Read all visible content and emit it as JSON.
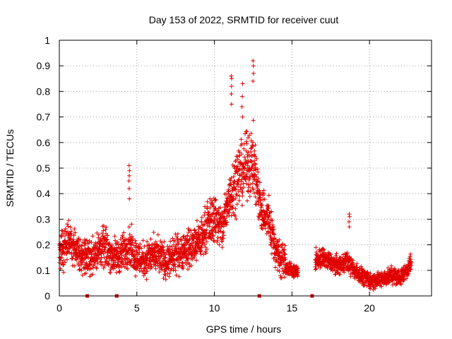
{
  "chart_data": {
    "type": "scatter",
    "title": "Day 153 of 2022, SRMTID for receiver cuut",
    "xlabel": "GPS time / hours",
    "ylabel": "SRMTID / TECUs",
    "xlim": [
      0,
      24
    ],
    "ylim": [
      0,
      1
    ],
    "xticks": [
      0,
      5,
      10,
      15,
      20
    ],
    "xtick_labels": [
      "0",
      "5",
      "10",
      "15",
      "20"
    ],
    "yticks": [
      0,
      0.1,
      0.2,
      0.3,
      0.4,
      0.5,
      0.6,
      0.7,
      0.8,
      0.9,
      1
    ],
    "ytick_labels": [
      "0",
      "0.1",
      "0.2",
      "0.3",
      "0.4",
      "0.5",
      "0.6",
      "0.7",
      "0.8",
      "0.9",
      "1"
    ],
    "grid": true,
    "marker": "plus",
    "color": "#e00000",
    "series": [
      {
        "name": "SRMTID",
        "segments": [
          {
            "t_start": 0.0,
            "t_end": 14.6,
            "profile": [
              [
                0.0,
                0.17
              ],
              [
                0.5,
                0.21
              ],
              [
                1.0,
                0.19
              ],
              [
                1.5,
                0.16
              ],
              [
                2.0,
                0.15
              ],
              [
                2.5,
                0.18
              ],
              [
                3.0,
                0.19
              ],
              [
                3.5,
                0.15
              ],
              [
                4.0,
                0.16
              ],
              [
                4.5,
                0.2
              ],
              [
                5.0,
                0.15
              ],
              [
                5.5,
                0.14
              ],
              [
                6.0,
                0.16
              ],
              [
                6.5,
                0.15
              ],
              [
                7.0,
                0.13
              ],
              [
                7.5,
                0.16
              ],
              [
                8.0,
                0.18
              ],
              [
                8.5,
                0.19
              ],
              [
                9.0,
                0.21
              ],
              [
                9.5,
                0.27
              ],
              [
                10.0,
                0.31
              ],
              [
                10.5,
                0.26
              ],
              [
                11.0,
                0.4
              ],
              [
                11.5,
                0.47
              ],
              [
                12.0,
                0.5
              ],
              [
                12.5,
                0.53
              ],
              [
                13.0,
                0.34
              ],
              [
                13.5,
                0.3
              ],
              [
                14.0,
                0.17
              ],
              [
                14.6,
                0.13
              ]
            ],
            "spread": 0.09
          },
          {
            "t_start": 14.6,
            "t_end": 15.4,
            "profile": [
              [
                14.6,
                0.11
              ],
              [
                15.4,
                0.09
              ]
            ],
            "spread": 0.04
          },
          {
            "t_start": 16.5,
            "t_end": 22.7,
            "profile": [
              [
                16.5,
                0.14
              ],
              [
                17.0,
                0.15
              ],
              [
                17.5,
                0.13
              ],
              [
                18.0,
                0.12
              ],
              [
                18.5,
                0.14
              ],
              [
                19.0,
                0.1
              ],
              [
                19.5,
                0.08
              ],
              [
                20.0,
                0.06
              ],
              [
                20.5,
                0.06
              ],
              [
                21.0,
                0.07
              ],
              [
                21.5,
                0.08
              ],
              [
                22.0,
                0.07
              ],
              [
                22.7,
                0.13
              ]
            ],
            "spread": 0.05
          }
        ],
        "spikes": [
          {
            "t": 4.5,
            "values": [
              0.38,
              0.42,
              0.45,
              0.47,
              0.49,
              0.51
            ]
          },
          {
            "t": 11.1,
            "values": [
              0.75,
              0.79,
              0.82,
              0.85,
              0.86
            ]
          },
          {
            "t": 11.8,
            "values": [
              0.7,
              0.74,
              0.78,
              0.83
            ]
          },
          {
            "t": 12.5,
            "values": [
              0.84,
              0.87,
              0.9,
              0.92
            ]
          },
          {
            "t": 18.7,
            "values": [
              0.27,
              0.29,
              0.31,
              0.32
            ]
          }
        ]
      },
      {
        "name": "zero-level markers",
        "values_t": [
          1.8,
          3.7,
          12.9,
          16.3
        ]
      }
    ]
  }
}
